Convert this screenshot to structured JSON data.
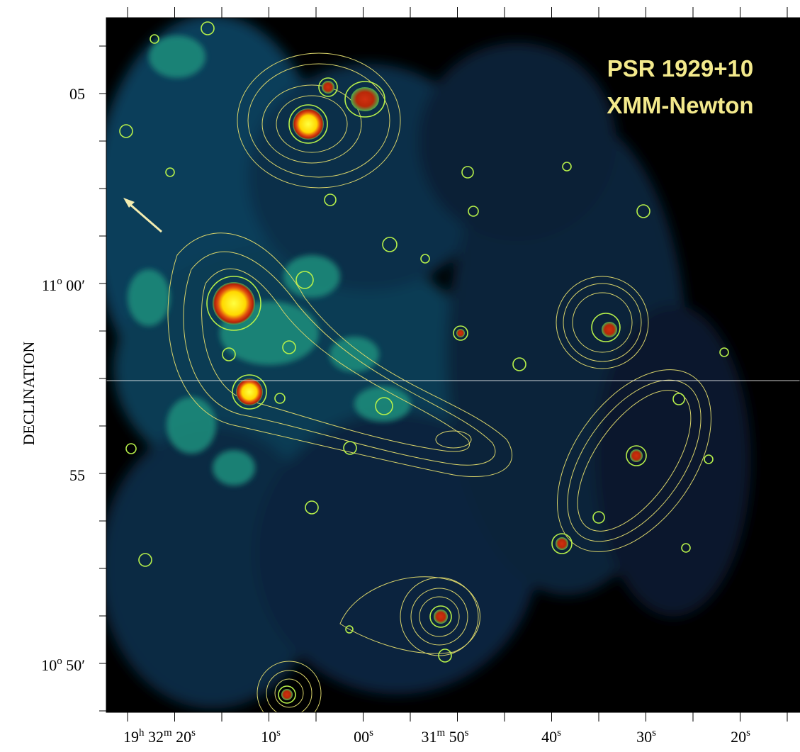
{
  "header": {
    "title": "PSR 1929+10",
    "subtitle": "XMM-Newton"
  },
  "y_axis": {
    "label": "DECLINATION",
    "ticks": [
      [
        "05"
      ],
      [
        "11",
        "o",
        " 00′"
      ],
      [
        "55"
      ],
      [
        "10",
        "o",
        " 50′"
      ]
    ]
  },
  "x_axis": {
    "ticks": [
      [
        "19",
        "h",
        " 32",
        "m",
        " 20",
        "s"
      ],
      [
        "10",
        "s"
      ],
      [
        "00",
        "s"
      ],
      [
        "31",
        "m",
        " 50",
        "s"
      ],
      [
        "40",
        "s"
      ],
      [
        "30",
        "s"
      ],
      [
        "20",
        "s"
      ]
    ]
  }
}
